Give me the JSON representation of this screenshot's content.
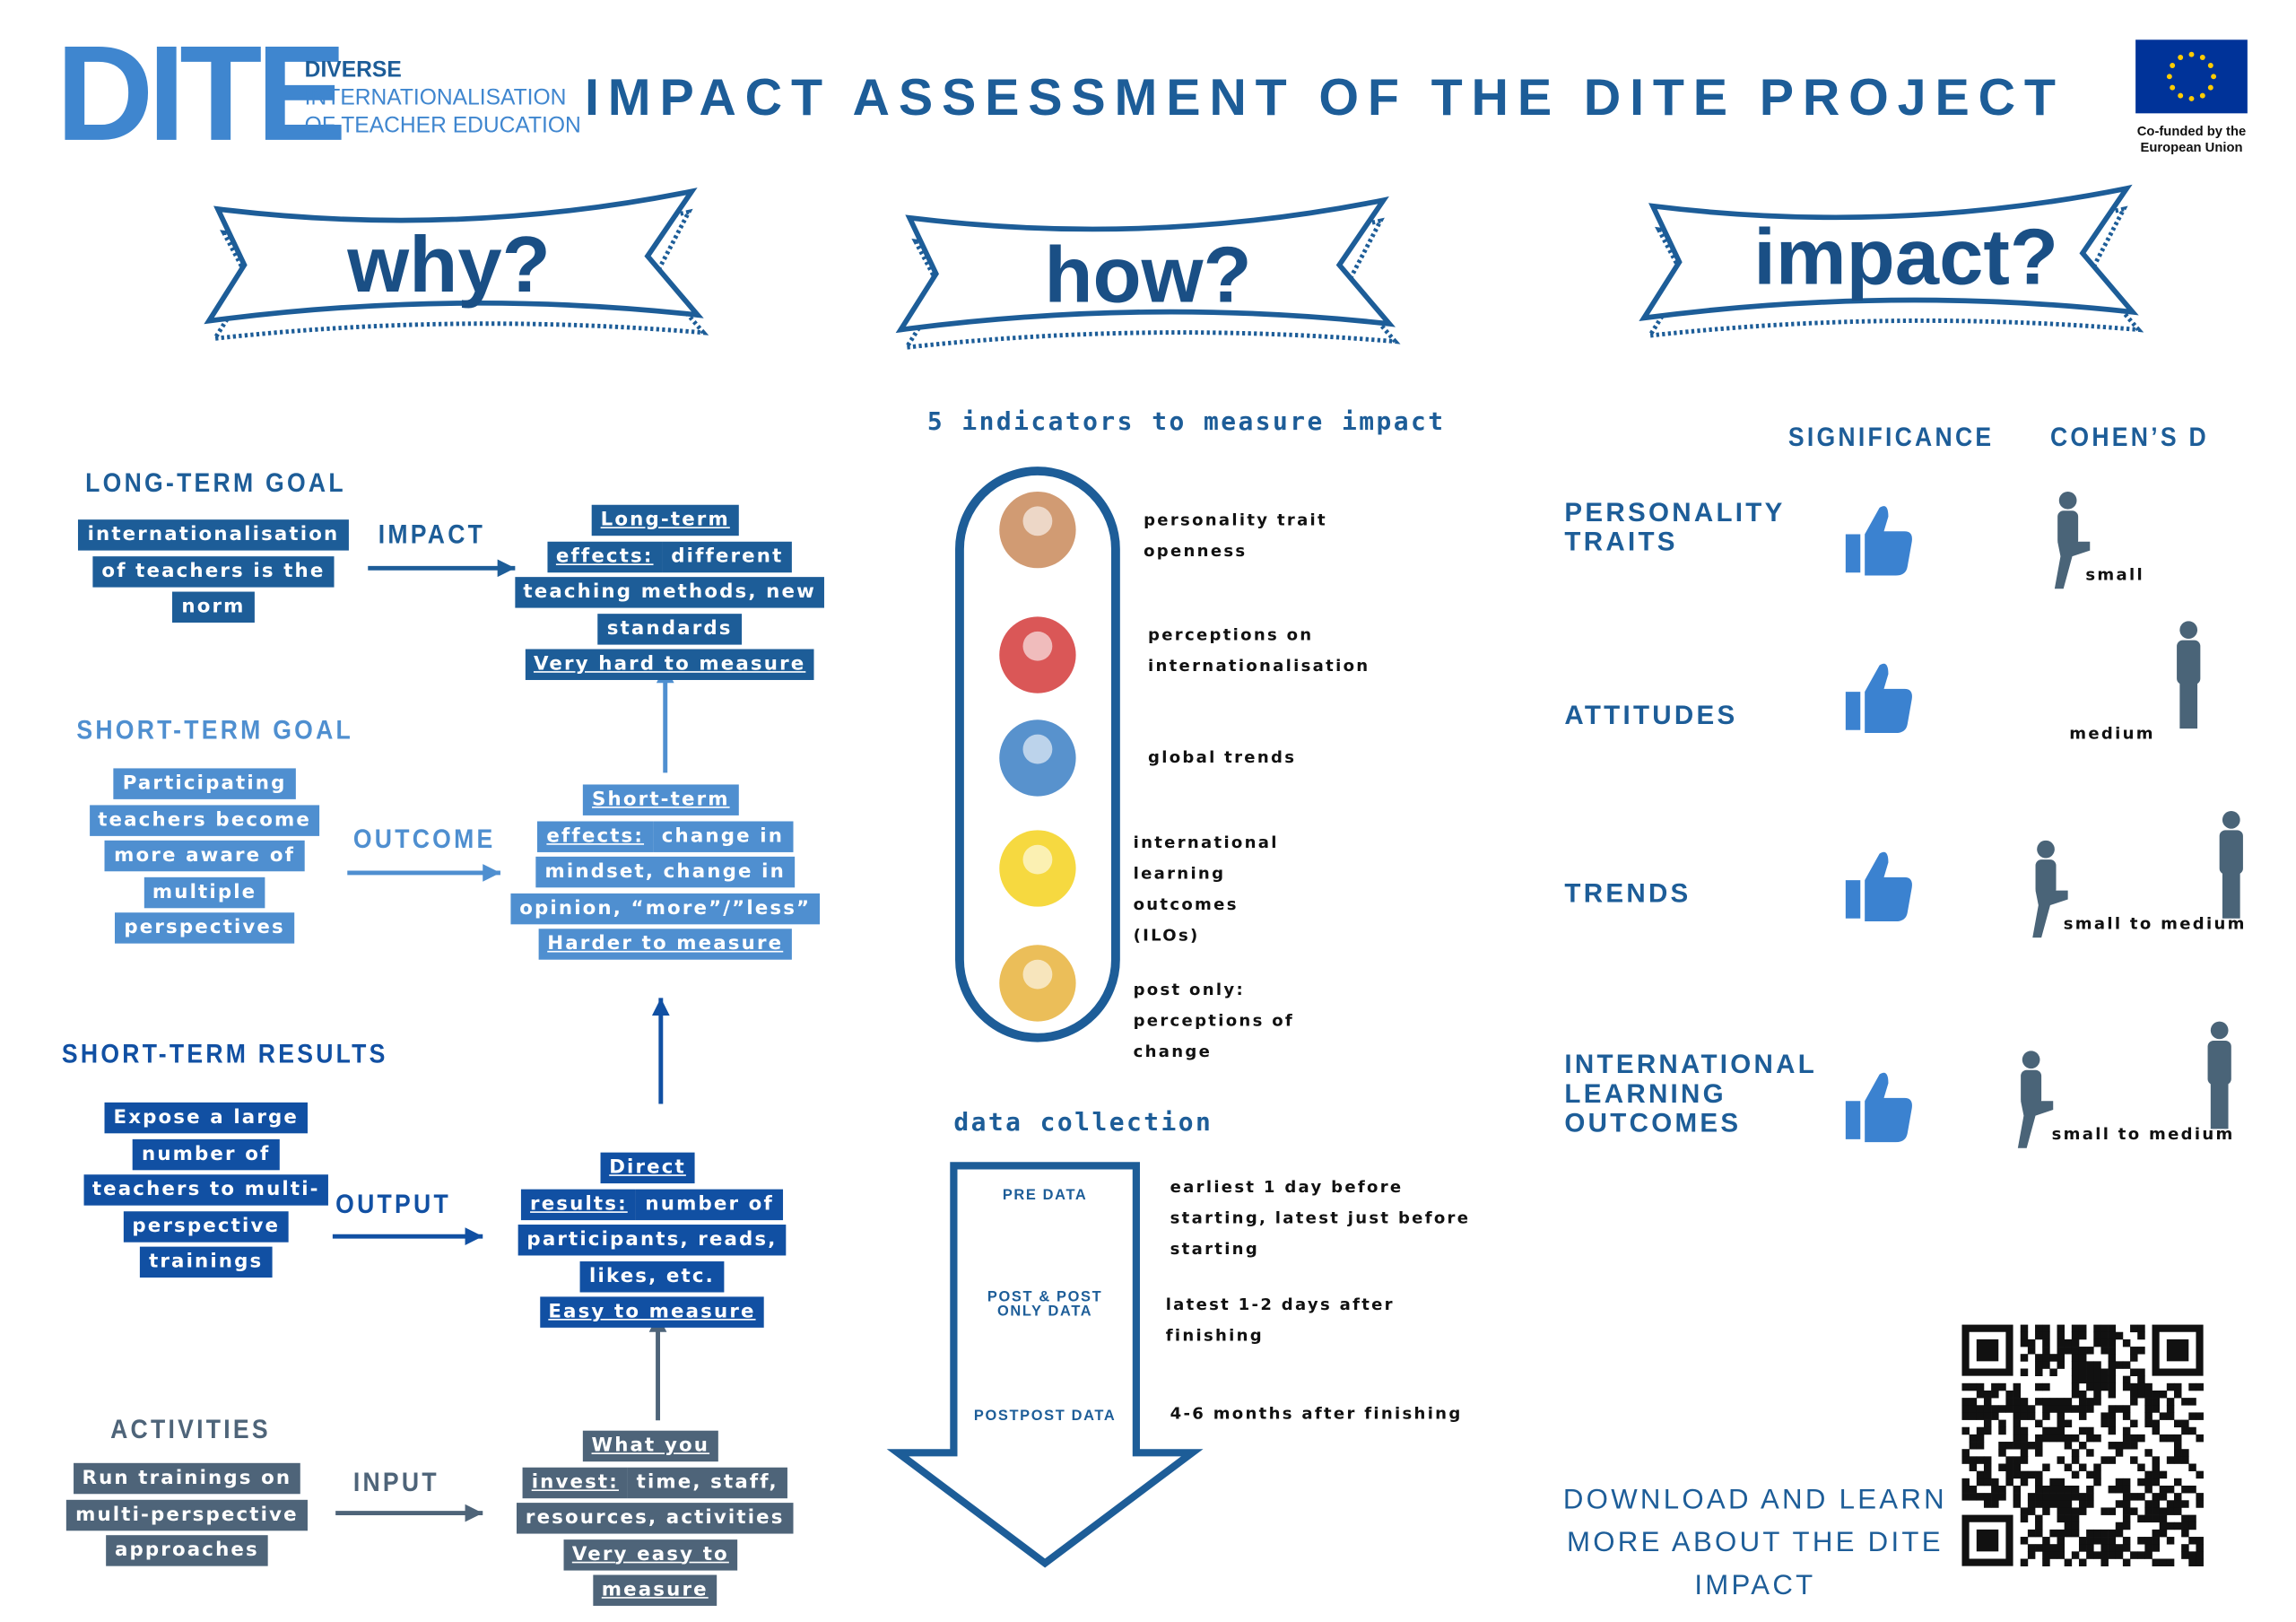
{
  "header": {
    "logo": "DITE",
    "logo_lines": [
      "DIVERSE",
      "INTERNATIONALISATION",
      "OF TEACHER EDUCATION"
    ],
    "title": "IMPACT ASSESSMENT OF THE DITE PROJECT",
    "eu_label": "Co-funded by the European Union"
  },
  "banners": [
    "why?",
    "how?",
    "impact?"
  ],
  "why": {
    "levels": [
      {
        "heading": "LONG-TERM GOAL",
        "text": "internationalisation of teachers is the norm",
        "arrow": "IMPACT",
        "box": {
          "title": "Long-term effects:",
          "body": "different teaching methods, new standards",
          "footer": "Very hard to measure"
        }
      },
      {
        "heading": "SHORT-TERM GOAL",
        "text": "Participating teachers become more aware of multiple perspectives",
        "arrow": "OUTCOME",
        "box": {
          "title": "Short-term effects:",
          "body": "change in mindset, change in opinion, “more”/”less”",
          "footer": "Harder to measure"
        }
      },
      {
        "heading": "SHORT-TERM RESULTS",
        "text": "Expose a large number of teachers to multi-perspective trainings",
        "arrow": "OUTPUT",
        "box": {
          "title": "Direct results:",
          "body": "number of participants, reads, likes, etc.",
          "footer": "Easy to measure"
        }
      },
      {
        "heading": "ACTIVITIES",
        "text": "Run trainings on multi-perspective approaches",
        "arrow": "INPUT",
        "box": {
          "title": "What you invest:",
          "body": "time, staff, resources, activities",
          "footer": "Very easy to measure"
        }
      }
    ]
  },
  "how": {
    "title": "5 indicators to measure impact",
    "indicators": [
      "personality trait openness",
      "perceptions on internationalisation",
      "global trends",
      "international learning outcomes (ILOs)",
      "post only: perceptions of change"
    ],
    "collection_title": "data collection",
    "stages": [
      {
        "label": "PRE DATA",
        "text": "earliest 1 day before starting, latest just before starting"
      },
      {
        "label": "POST & POST ONLY DATA",
        "text": "latest 1-2 days after finishing"
      },
      {
        "label": "POSTPOST DATA",
        "text": "4-6 months after finishing"
      }
    ]
  },
  "impact": {
    "columns": [
      "SIGNIFICANCE",
      "COHEN’S D"
    ],
    "rows": [
      {
        "label": "PERSONALITY TRAITS",
        "effect": "small"
      },
      {
        "label": "ATTITUDES",
        "effect": "medium"
      },
      {
        "label": "TRENDS",
        "effect": "small to medium"
      },
      {
        "label": "INTERNATIONAL LEARNING OUTCOMES",
        "effect": "small to medium"
      }
    ],
    "download": "DOWNLOAD AND LEARN MORE ABOUT THE DITE IMPACT"
  }
}
